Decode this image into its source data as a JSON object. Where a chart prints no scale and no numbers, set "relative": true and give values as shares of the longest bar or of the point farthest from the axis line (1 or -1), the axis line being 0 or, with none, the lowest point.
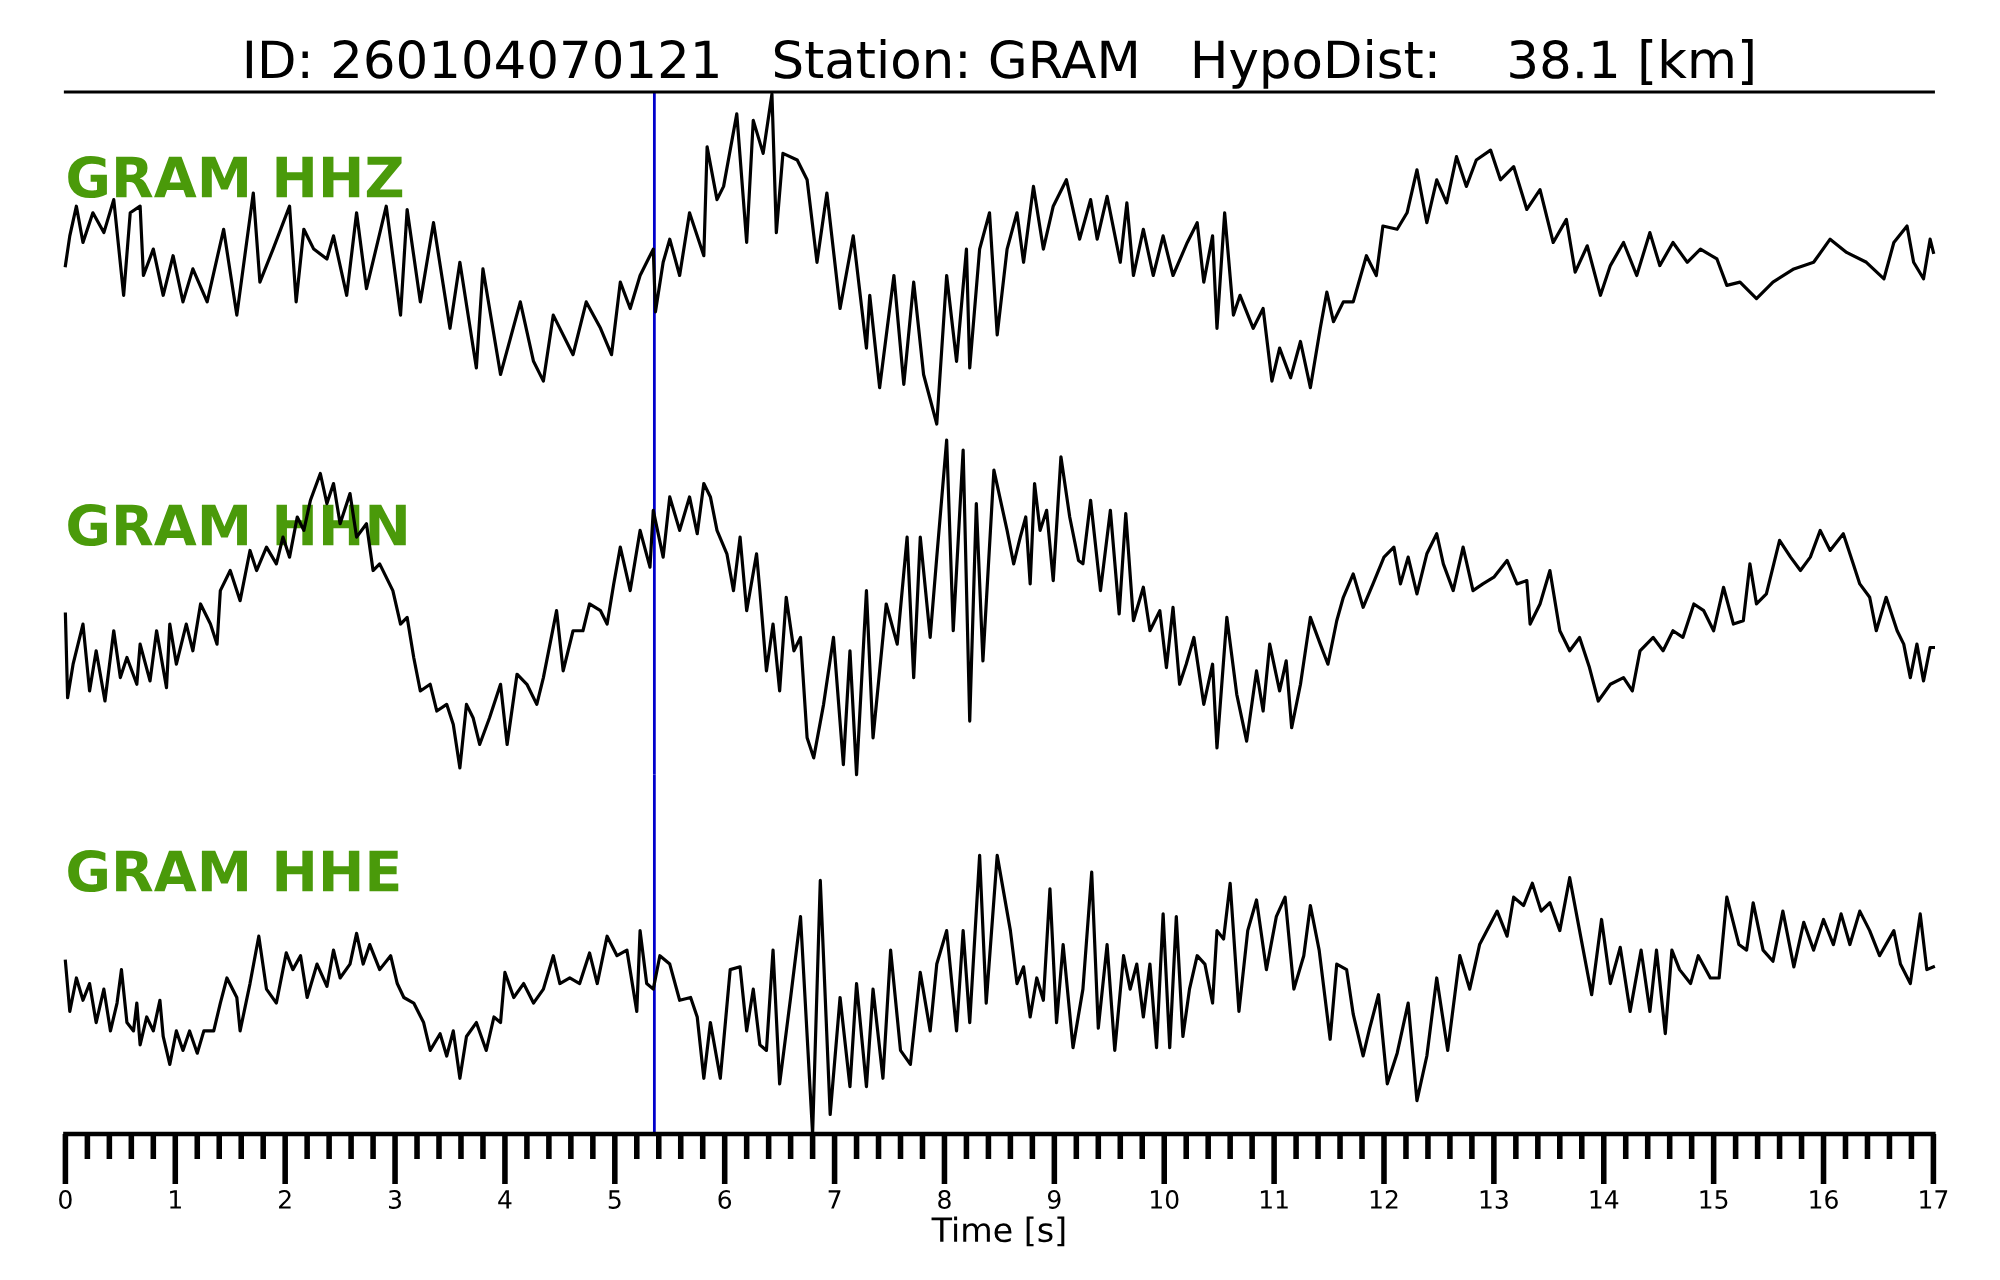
{
  "chart_data": [
    {
      "type": "line",
      "title": "ID: 260104070121   Station: GRAM   HypoDist:    38.1 [km]",
      "relative": true,
      "xlim": [
        0,
        17
      ],
      "tick_labels": false,
      "ref_lines": [
        {
          "axis": "x",
          "value": 5.36,
          "color": "#0000cc"
        }
      ],
      "x": [
        0.0,
        0.04,
        0.1,
        0.16,
        0.25,
        0.35,
        0.44,
        0.53,
        0.59,
        0.68,
        0.71,
        0.8,
        0.89,
        0.98,
        1.07,
        1.16,
        1.29,
        1.44,
        1.56,
        1.71,
        1.77,
        1.89,
        2.04,
        2.1,
        2.17,
        2.26,
        2.38,
        2.44,
        2.56,
        2.65,
        2.74,
        2.92,
        3.05,
        3.11,
        3.23,
        3.35,
        3.5,
        3.59,
        3.74,
        3.8,
        3.96,
        4.14,
        4.26,
        4.35,
        4.44,
        4.62,
        4.74,
        4.87,
        4.97,
        5.05,
        5.14,
        5.23,
        5.35,
        5.37,
        5.44,
        5.5,
        5.59,
        5.68,
        5.81,
        5.84,
        5.93,
        5.99,
        6.11,
        6.2,
        6.26,
        6.35,
        6.43,
        6.47,
        6.53,
        6.66,
        6.75,
        6.84,
        6.93,
        7.05,
        7.17,
        7.29,
        7.32,
        7.41,
        7.54,
        7.63,
        7.72,
        7.81,
        7.93,
        8.02,
        8.11,
        8.2,
        8.23,
        8.32,
        8.41,
        8.48,
        8.57,
        8.66,
        8.72,
        8.81,
        8.9,
        8.99,
        9.11,
        9.23,
        9.33,
        9.39,
        9.48,
        9.6,
        9.66,
        9.72,
        9.81,
        9.9,
        9.99,
        10.08,
        10.21,
        10.3,
        10.36,
        10.44,
        10.48,
        10.55,
        10.63,
        10.69,
        10.81,
        10.9,
        10.98,
        11.05,
        11.15,
        11.24,
        11.33,
        11.42,
        11.48,
        11.54,
        11.63,
        11.72,
        11.84,
        11.93,
        11.99,
        12.12,
        12.21,
        12.3,
        12.39,
        12.48,
        12.57,
        12.66,
        12.75,
        12.84,
        12.97,
        13.06,
        13.18,
        13.3,
        13.42,
        13.54,
        13.66,
        13.74,
        13.85,
        13.97,
        14.06,
        14.18,
        14.3,
        14.42,
        14.51,
        14.63,
        14.76,
        14.88,
        15.03,
        15.12,
        15.24,
        15.39,
        15.54,
        15.73,
        15.91,
        16.06,
        16.21,
        16.39,
        16.55,
        16.64,
        16.76,
        16.82,
        16.91,
        16.97,
        17.0
      ],
      "series": [
        {
          "name": "GRAM HHZ",
          "color": "#000000",
          "values": [
            0.48,
            0.57,
            0.66,
            0.55,
            0.64,
            0.58,
            0.68,
            0.39,
            0.64,
            0.66,
            0.45,
            0.53,
            0.39,
            0.51,
            0.37,
            0.47,
            0.37,
            0.59,
            0.33,
            0.7,
            0.43,
            0.53,
            0.66,
            0.37,
            0.59,
            0.53,
            0.5,
            0.57,
            0.39,
            0.64,
            0.41,
            0.66,
            0.33,
            0.65,
            0.37,
            0.61,
            0.29,
            0.49,
            0.17,
            0.47,
            0.15,
            0.37,
            0.19,
            0.13,
            0.33,
            0.21,
            0.37,
            0.29,
            0.21,
            0.43,
            0.35,
            0.45,
            0.53,
            0.34,
            0.49,
            0.56,
            0.45,
            0.64,
            0.51,
            0.84,
            0.68,
            0.72,
            0.94,
            0.55,
            0.92,
            0.82,
            1.0,
            0.58,
            0.82,
            0.8,
            0.74,
            0.49,
            0.7,
            0.35,
            0.57,
            0.23,
            0.39,
            0.11,
            0.45,
            0.12,
            0.43,
            0.15,
            0.0,
            0.45,
            0.19,
            0.53,
            0.17,
            0.53,
            0.64,
            0.27,
            0.53,
            0.64,
            0.49,
            0.72,
            0.53,
            0.66,
            0.74,
            0.56,
            0.68,
            0.56,
            0.69,
            0.49,
            0.67,
            0.45,
            0.59,
            0.45,
            0.57,
            0.45,
            0.55,
            0.61,
            0.43,
            0.57,
            0.29,
            0.64,
            0.33,
            0.39,
            0.29,
            0.35,
            0.13,
            0.23,
            0.14,
            0.25,
            0.11,
            0.29,
            0.4,
            0.31,
            0.37,
            0.37,
            0.51,
            0.45,
            0.6,
            0.59,
            0.64,
            0.77,
            0.61,
            0.74,
            0.67,
            0.81,
            0.72,
            0.8,
            0.83,
            0.74,
            0.78,
            0.65,
            0.71,
            0.55,
            0.62,
            0.46,
            0.54,
            0.39,
            0.48,
            0.55,
            0.45,
            0.58,
            0.48,
            0.55,
            0.49,
            0.53,
            0.5,
            0.42,
            0.43,
            0.38,
            0.43,
            0.47,
            0.49,
            0.56,
            0.52,
            0.49,
            0.44,
            0.55,
            0.6,
            0.49,
            0.44,
            0.56,
            0.52
          ]
        }
      ]
    },
    {
      "type": "line",
      "relative": true,
      "xlim": [
        0,
        17
      ],
      "tick_labels": false,
      "ref_lines": [
        {
          "axis": "x",
          "value": 5.36,
          "color": "#0000cc"
        }
      ],
      "x": [
        0.0,
        0.02,
        0.07,
        0.16,
        0.22,
        0.28,
        0.36,
        0.44,
        0.5,
        0.56,
        0.65,
        0.68,
        0.77,
        0.83,
        0.92,
        0.95,
        1.01,
        1.1,
        1.16,
        1.23,
        1.32,
        1.38,
        1.41,
        1.5,
        1.59,
        1.68,
        1.74,
        1.83,
        1.92,
        1.98,
        2.04,
        2.11,
        2.17,
        2.23,
        2.32,
        2.38,
        2.44,
        2.5,
        2.59,
        2.65,
        2.74,
        2.8,
        2.86,
        2.98,
        3.05,
        3.11,
        3.17,
        3.23,
        3.32,
        3.38,
        3.47,
        3.53,
        3.59,
        3.65,
        3.71,
        3.77,
        3.86,
        3.96,
        4.02,
        4.11,
        4.2,
        4.29,
        4.35,
        4.47,
        4.53,
        4.62,
        4.71,
        4.77,
        4.87,
        4.93,
        4.99,
        5.05,
        5.14,
        5.23,
        5.32,
        5.35,
        5.44,
        5.5,
        5.59,
        5.68,
        5.75,
        5.81,
        5.87,
        5.93,
        6.02,
        6.08,
        6.14,
        6.2,
        6.29,
        6.32,
        6.38,
        6.44,
        6.5,
        6.56,
        6.63,
        6.69,
        6.75,
        6.81,
        6.9,
        6.99,
        7.08,
        7.14,
        7.2,
        7.29,
        7.35,
        7.47,
        7.57,
        7.66,
        7.72,
        7.78,
        7.87,
        7.93,
        8.02,
        8.08,
        8.17,
        8.23,
        8.29,
        8.35,
        8.45,
        8.57,
        8.63,
        8.69,
        8.74,
        8.78,
        8.82,
        8.87,
        8.93,
        8.99,
        9.06,
        9.14,
        9.22,
        9.26,
        9.33,
        9.42,
        9.51,
        9.59,
        9.65,
        9.72,
        9.81,
        9.87,
        9.96,
        10.02,
        10.08,
        10.14,
        10.2,
        10.27,
        10.36,
        10.44,
        10.48,
        10.57,
        10.66,
        10.75,
        10.84,
        10.9,
        10.96,
        11.05,
        11.11,
        11.16,
        11.24,
        11.33,
        11.42,
        11.49,
        11.57,
        11.63,
        11.72,
        11.81,
        11.9,
        12.0,
        12.09,
        12.15,
        12.22,
        12.3,
        12.39,
        12.48,
        12.54,
        12.63,
        12.72,
        12.81,
        12.9,
        13.0,
        13.12,
        13.21,
        13.3,
        13.33,
        13.42,
        13.51,
        13.6,
        13.69,
        13.78,
        13.87,
        13.95,
        14.06,
        14.18,
        14.26,
        14.33,
        14.45,
        14.54,
        14.63,
        14.72,
        14.82,
        14.91,
        15.0,
        15.09,
        15.18,
        15.27,
        15.33,
        15.39,
        15.48,
        15.6,
        15.7,
        15.79,
        15.88,
        15.97,
        16.06,
        16.18,
        16.27,
        16.33,
        16.42,
        16.48,
        16.57,
        16.67,
        16.73,
        16.79,
        16.85,
        16.91,
        16.97,
        17.0
      ],
      "series": [
        {
          "name": "GRAM HHN",
          "color": "#000000",
          "values": [
            0.48,
            0.23,
            0.33,
            0.45,
            0.25,
            0.37,
            0.22,
            0.43,
            0.29,
            0.35,
            0.27,
            0.39,
            0.28,
            0.43,
            0.26,
            0.45,
            0.33,
            0.45,
            0.37,
            0.51,
            0.45,
            0.39,
            0.55,
            0.61,
            0.52,
            0.67,
            0.61,
            0.68,
            0.63,
            0.71,
            0.65,
            0.77,
            0.73,
            0.82,
            0.9,
            0.81,
            0.87,
            0.75,
            0.84,
            0.71,
            0.75,
            0.61,
            0.63,
            0.55,
            0.45,
            0.47,
            0.35,
            0.25,
            0.27,
            0.19,
            0.21,
            0.15,
            0.02,
            0.21,
            0.17,
            0.09,
            0.17,
            0.27,
            0.09,
            0.3,
            0.27,
            0.21,
            0.29,
            0.49,
            0.31,
            0.43,
            0.43,
            0.51,
            0.49,
            0.45,
            0.57,
            0.68,
            0.55,
            0.73,
            0.62,
            0.79,
            0.65,
            0.83,
            0.73,
            0.83,
            0.72,
            0.87,
            0.83,
            0.73,
            0.66,
            0.55,
            0.71,
            0.49,
            0.66,
            0.55,
            0.31,
            0.45,
            0.25,
            0.53,
            0.37,
            0.41,
            0.11,
            0.05,
            0.21,
            0.41,
            0.03,
            0.37,
            0.0,
            0.55,
            0.11,
            0.51,
            0.39,
            0.71,
            0.29,
            0.71,
            0.41,
            0.65,
            1.0,
            0.43,
            0.97,
            0.16,
            0.81,
            0.34,
            0.91,
            0.73,
            0.63,
            0.71,
            0.77,
            0.57,
            0.87,
            0.73,
            0.79,
            0.58,
            0.95,
            0.77,
            0.64,
            0.63,
            0.82,
            0.55,
            0.79,
            0.48,
            0.78,
            0.46,
            0.56,
            0.43,
            0.49,
            0.32,
            0.5,
            0.27,
            0.33,
            0.41,
            0.21,
            0.33,
            0.08,
            0.47,
            0.24,
            0.1,
            0.31,
            0.19,
            0.39,
            0.25,
            0.34,
            0.14,
            0.27,
            0.47,
            0.39,
            0.33,
            0.46,
            0.53,
            0.6,
            0.5,
            0.57,
            0.65,
            0.68,
            0.57,
            0.65,
            0.54,
            0.66,
            0.72,
            0.63,
            0.55,
            0.68,
            0.55,
            0.57,
            0.59,
            0.64,
            0.57,
            0.58,
            0.45,
            0.51,
            0.61,
            0.43,
            0.37,
            0.41,
            0.32,
            0.22,
            0.27,
            0.29,
            0.25,
            0.37,
            0.41,
            0.37,
            0.43,
            0.41,
            0.51,
            0.49,
            0.43,
            0.56,
            0.45,
            0.46,
            0.63,
            0.51,
            0.54,
            0.7,
            0.65,
            0.61,
            0.65,
            0.73,
            0.67,
            0.72,
            0.63,
            0.57,
            0.53,
            0.43,
            0.53,
            0.43,
            0.39,
            0.29,
            0.39,
            0.28,
            0.38,
            0.38
          ]
        }
      ]
    },
    {
      "type": "line",
      "relative": true,
      "xlim": [
        0,
        17
      ],
      "tick_labels": "x",
      "xlabel": "Time [s]",
      "xticks": [
        0,
        {
          "value": 0.2,
          "label": null
        },
        {
          "value": 0.4,
          "label": null
        },
        {
          "value": 0.6,
          "label": null
        },
        {
          "value": 0.8,
          "label": null
        },
        1,
        {
          "value": 1.2,
          "label": null
        },
        {
          "value": 1.4,
          "label": null
        },
        {
          "value": 1.6,
          "label": null
        },
        {
          "value": 1.8,
          "label": null
        },
        2,
        {
          "value": 2.2,
          "label": null
        },
        {
          "value": 2.4,
          "label": null
        },
        {
          "value": 2.6,
          "label": null
        },
        {
          "value": 2.8,
          "label": null
        },
        3,
        {
          "value": 3.2,
          "label": null
        },
        {
          "value": 3.4,
          "label": null
        },
        {
          "value": 3.6,
          "label": null
        },
        {
          "value": 3.8,
          "label": null
        },
        4,
        {
          "value": 4.2,
          "label": null
        },
        {
          "value": 4.4,
          "label": null
        },
        {
          "value": 4.6,
          "label": null
        },
        {
          "value": 4.8,
          "label": null
        },
        5,
        {
          "value": 5.2,
          "label": null
        },
        {
          "value": 5.4,
          "label": null
        },
        {
          "value": 5.6,
          "label": null
        },
        {
          "value": 5.8,
          "label": null
        },
        6,
        {
          "value": 6.2,
          "label": null
        },
        {
          "value": 6.4,
          "label": null
        },
        {
          "value": 6.6,
          "label": null
        },
        {
          "value": 6.8,
          "label": null
        },
        7,
        {
          "value": 7.2,
          "label": null
        },
        {
          "value": 7.4,
          "label": null
        },
        {
          "value": 7.6,
          "label": null
        },
        {
          "value": 7.8,
          "label": null
        },
        8,
        {
          "value": 8.2,
          "label": null
        },
        {
          "value": 8.4,
          "label": null
        },
        {
          "value": 8.6,
          "label": null
        },
        {
          "value": 8.8,
          "label": null
        },
        9,
        {
          "value": 9.2,
          "label": null
        },
        {
          "value": 9.4,
          "label": null
        },
        {
          "value": 9.6,
          "label": null
        },
        {
          "value": 9.8,
          "label": null
        },
        10,
        {
          "value": 10.2,
          "label": null
        },
        {
          "value": 10.4,
          "label": null
        },
        {
          "value": 10.6,
          "label": null
        },
        {
          "value": 10.8,
          "label": null
        },
        11,
        {
          "value": 11.2,
          "label": null
        },
        {
          "value": 11.4,
          "label": null
        },
        {
          "value": 11.6,
          "label": null
        },
        {
          "value": 11.8,
          "label": null
        },
        12,
        {
          "value": 12.2,
          "label": null
        },
        {
          "value": 12.4,
          "label": null
        },
        {
          "value": 12.6,
          "label": null
        },
        {
          "value": 12.8,
          "label": null
        },
        13,
        {
          "value": 13.2,
          "label": null
        },
        {
          "value": 13.4,
          "label": null
        },
        {
          "value": 13.6,
          "label": null
        },
        {
          "value": 13.8,
          "label": null
        },
        14,
        {
          "value": 14.2,
          "label": null
        },
        {
          "value": 14.4,
          "label": null
        },
        {
          "value": 14.6,
          "label": null
        },
        {
          "value": 14.8,
          "label": null
        },
        15,
        {
          "value": 15.2,
          "label": null
        },
        {
          "value": 15.4,
          "label": null
        },
        {
          "value": 15.6,
          "label": null
        },
        {
          "value": 15.8,
          "label": null
        },
        16,
        {
          "value": 16.2,
          "label": null
        },
        {
          "value": 16.4,
          "label": null
        },
        {
          "value": 16.6,
          "label": null
        },
        {
          "value": 16.8,
          "label": null
        },
        17
      ],
      "ref_lines": [
        {
          "axis": "x",
          "value": 5.36,
          "color": "#0000cc"
        }
      ],
      "x": [
        0.0,
        0.04,
        0.1,
        0.16,
        0.22,
        0.28,
        0.35,
        0.41,
        0.47,
        0.51,
        0.56,
        0.62,
        0.65,
        0.68,
        0.74,
        0.8,
        0.86,
        0.89,
        0.95,
        1.01,
        1.07,
        1.13,
        1.2,
        1.26,
        1.35,
        1.41,
        1.47,
        1.56,
        1.59,
        1.68,
        1.76,
        1.83,
        1.92,
        2.01,
        2.07,
        2.14,
        2.2,
        2.29,
        2.38,
        2.44,
        2.5,
        2.59,
        2.65,
        2.71,
        2.77,
        2.86,
        2.96,
        3.02,
        3.08,
        3.17,
        3.26,
        3.32,
        3.41,
        3.47,
        3.53,
        3.59,
        3.65,
        3.74,
        3.83,
        3.9,
        3.96,
        4.0,
        4.08,
        4.17,
        4.26,
        4.35,
        4.44,
        4.5,
        4.59,
        4.68,
        4.77,
        4.84,
        4.93,
        5.02,
        5.11,
        5.2,
        5.23,
        5.29,
        5.35,
        5.41,
        5.5,
        5.59,
        5.69,
        5.75,
        5.81,
        5.87,
        5.96,
        6.05,
        6.14,
        6.2,
        6.26,
        6.32,
        6.38,
        6.44,
        6.5,
        6.6,
        6.69,
        6.8,
        6.87,
        6.96,
        7.05,
        7.14,
        7.2,
        7.29,
        7.35,
        7.44,
        7.51,
        7.6,
        7.69,
        7.78,
        7.87,
        7.93,
        8.02,
        8.11,
        8.17,
        8.23,
        8.32,
        8.38,
        8.48,
        8.6,
        8.66,
        8.72,
        8.78,
        8.84,
        8.9,
        8.96,
        9.02,
        9.08,
        9.17,
        9.26,
        9.34,
        9.4,
        9.48,
        9.55,
        9.63,
        9.69,
        9.75,
        9.81,
        9.87,
        9.93,
        9.99,
        10.05,
        10.11,
        10.17,
        10.23,
        10.3,
        10.37,
        10.44,
        10.48,
        10.54,
        10.6,
        10.68,
        10.76,
        10.84,
        10.93,
        11.02,
        11.1,
        11.18,
        11.27,
        11.33,
        11.41,
        11.51,
        11.57,
        11.66,
        11.72,
        11.81,
        11.87,
        11.95,
        12.03,
        12.12,
        12.22,
        12.3,
        12.39,
        12.48,
        12.58,
        12.69,
        12.78,
        12.87,
        13.03,
        13.12,
        13.18,
        13.27,
        13.35,
        13.43,
        13.51,
        13.6,
        13.69,
        13.78,
        13.89,
        13.98,
        14.06,
        14.15,
        14.24,
        14.34,
        14.42,
        14.48,
        14.56,
        14.62,
        14.69,
        14.79,
        14.86,
        14.97,
        15.05,
        15.12,
        15.23,
        15.3,
        15.36,
        15.45,
        15.54,
        15.63,
        15.73,
        15.82,
        15.91,
        16.0,
        16.09,
        16.16,
        16.24,
        16.33,
        16.42,
        16.51,
        16.64,
        16.7,
        16.79,
        16.88,
        16.94,
        17.0
      ],
      "series": [
        {
          "name": "GRAM HHE",
          "color": "#000000",
          "values": [
            0.62,
            0.44,
            0.56,
            0.48,
            0.54,
            0.4,
            0.52,
            0.37,
            0.47,
            0.59,
            0.4,
            0.37,
            0.47,
            0.32,
            0.42,
            0.37,
            0.48,
            0.35,
            0.25,
            0.37,
            0.3,
            0.37,
            0.29,
            0.37,
            0.37,
            0.47,
            0.56,
            0.49,
            0.37,
            0.54,
            0.71,
            0.52,
            0.47,
            0.65,
            0.59,
            0.64,
            0.49,
            0.61,
            0.53,
            0.66,
            0.56,
            0.61,
            0.72,
            0.61,
            0.68,
            0.59,
            0.64,
            0.54,
            0.49,
            0.47,
            0.4,
            0.3,
            0.36,
            0.28,
            0.37,
            0.2,
            0.35,
            0.4,
            0.3,
            0.42,
            0.4,
            0.58,
            0.49,
            0.54,
            0.47,
            0.52,
            0.64,
            0.54,
            0.56,
            0.54,
            0.65,
            0.54,
            0.71,
            0.64,
            0.66,
            0.44,
            0.73,
            0.54,
            0.52,
            0.64,
            0.61,
            0.48,
            0.49,
            0.42,
            0.2,
            0.4,
            0.2,
            0.59,
            0.6,
            0.37,
            0.52,
            0.32,
            0.3,
            0.66,
            0.18,
            0.49,
            0.78,
            0.0,
            0.91,
            0.07,
            0.49,
            0.17,
            0.54,
            0.17,
            0.52,
            0.2,
            0.66,
            0.3,
            0.25,
            0.58,
            0.37,
            0.61,
            0.73,
            0.37,
            0.73,
            0.4,
            1.0,
            0.47,
            1.0,
            0.73,
            0.54,
            0.6,
            0.42,
            0.56,
            0.48,
            0.88,
            0.4,
            0.68,
            0.31,
            0.52,
            0.94,
            0.38,
            0.68,
            0.3,
            0.64,
            0.52,
            0.61,
            0.42,
            0.61,
            0.31,
            0.79,
            0.31,
            0.78,
            0.35,
            0.52,
            0.64,
            0.61,
            0.47,
            0.73,
            0.7,
            0.9,
            0.44,
            0.73,
            0.84,
            0.59,
            0.78,
            0.85,
            0.52,
            0.64,
            0.82,
            0.66,
            0.34,
            0.61,
            0.59,
            0.43,
            0.28,
            0.38,
            0.5,
            0.18,
            0.29,
            0.47,
            0.12,
            0.28,
            0.56,
            0.3,
            0.64,
            0.52,
            0.68,
            0.8,
            0.71,
            0.85,
            0.82,
            0.9,
            0.8,
            0.83,
            0.73,
            0.92,
            0.73,
            0.5,
            0.77,
            0.54,
            0.67,
            0.44,
            0.66,
            0.44,
            0.66,
            0.36,
            0.66,
            0.59,
            0.54,
            0.64,
            0.56,
            0.56,
            0.85,
            0.68,
            0.66,
            0.83,
            0.66,
            0.62,
            0.8,
            0.6,
            0.76,
            0.66,
            0.77,
            0.68,
            0.79,
            0.68,
            0.8,
            0.73,
            0.64,
            0.73,
            0.61,
            0.54,
            0.79,
            0.59,
            0.6
          ]
        }
      ]
    }
  ]
}
